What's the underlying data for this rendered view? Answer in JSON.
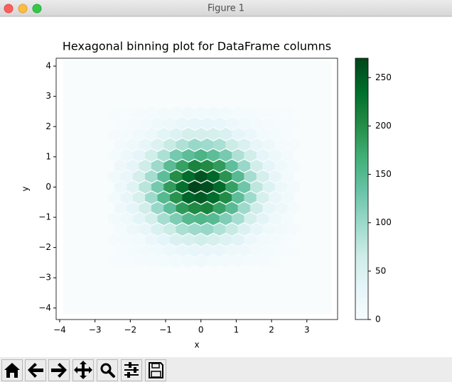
{
  "window": {
    "title": "Figure 1"
  },
  "chart_data": {
    "type": "hexbin",
    "title": "Hexagonal binning plot for DataFrame columns",
    "x_label": "x",
    "y_label": "y",
    "xlim": [
      -4.1,
      3.87
    ],
    "ylim": [
      -4.38,
      4.26
    ],
    "xticks": [
      {
        "value": -4,
        "label": "−4"
      },
      {
        "value": -3,
        "label": "−3"
      },
      {
        "value": -2,
        "label": "−2"
      },
      {
        "value": -1,
        "label": "−1"
      },
      0,
      1,
      2,
      3
    ],
    "yticks": [
      {
        "value": -4,
        "label": "−4"
      },
      {
        "value": -3,
        "label": "−3"
      },
      {
        "value": -2,
        "label": "−2"
      },
      {
        "value": -1,
        "label": "−1"
      },
      0,
      1,
      2,
      3,
      4
    ],
    "colormap": [
      "#f7fcfd",
      "#e5f5f9",
      "#ccece6",
      "#99d8c9",
      "#66c2a4",
      "#41ae76",
      "#238b45",
      "#006d2c",
      "#00441b"
    ],
    "clim": [
      0,
      270
    ],
    "cticks": [
      0,
      50,
      100,
      150,
      200,
      250
    ],
    "hex_width": 0.35,
    "rows": [
      {
        "y": -2.45,
        "x": [
          -2.45,
          -2.1,
          -1.75,
          -1.4,
          -1.05,
          -0.7,
          -0.35,
          0,
          0.35,
          0.7,
          1.05,
          1.4,
          1.75,
          2.1,
          2.45
        ],
        "counts": [
          1,
          2,
          3,
          5,
          7,
          12,
          13,
          15,
          12,
          10,
          8,
          4,
          3,
          1,
          0
        ]
      },
      {
        "y": -2.1,
        "x": [
          -2.275,
          -1.925,
          -1.575,
          -1.225,
          -0.875,
          -0.525,
          -0.175,
          0.175,
          0.525,
          0.875,
          1.225,
          1.575,
          1.925,
          2.275,
          2.625
        ],
        "counts": [
          2,
          5,
          10,
          13,
          21,
          25,
          30,
          28,
          27,
          19,
          15,
          8,
          5,
          2,
          1
        ]
      },
      {
        "y": -1.75,
        "x": [
          -2.45,
          -2.1,
          -1.75,
          -1.4,
          -1.05,
          -0.7,
          -0.35,
          0,
          0.35,
          0.7,
          1.05,
          1.4,
          1.75,
          2.1,
          2.45
        ],
        "counts": [
          3,
          7,
          12,
          23,
          33,
          48,
          54,
          60,
          53,
          45,
          36,
          21,
          12,
          6,
          2
        ]
      },
      {
        "y": -1.4,
        "x": [
          -2.275,
          -1.925,
          -1.575,
          -1.225,
          -0.875,
          -0.525,
          -0.175,
          0.175,
          0.525,
          0.875,
          1.225,
          1.575,
          1.925,
          2.275,
          2.625
        ],
        "counts": [
          7,
          17,
          28,
          50,
          67,
          90,
          98,
          103,
          86,
          71,
          46,
          30,
          15,
          9,
          3
        ]
      },
      {
        "y": -1.05,
        "x": [
          -2.45,
          -2.1,
          -1.75,
          -1.4,
          -1.05,
          -0.7,
          -0.35,
          0,
          0.35,
          0.7,
          1.05,
          1.4,
          1.75,
          2.1,
          2.45
        ],
        "counts": [
          9,
          16,
          35,
          56,
          92,
          120,
          150,
          153,
          148,
          118,
          93,
          55,
          35,
          16,
          7
        ]
      },
      {
        "y": -0.7,
        "x": [
          -2.275,
          -1.925,
          -1.575,
          -1.225,
          -0.875,
          -0.525,
          -0.175,
          0.175,
          0.525,
          0.875,
          1.225,
          1.575,
          1.925,
          2.275,
          2.625
        ],
        "counts": [
          15,
          34,
          60,
          102,
          141,
          188,
          205,
          212,
          180,
          147,
          98,
          63,
          31,
          17,
          6
        ]
      },
      {
        "y": -0.35,
        "x": [
          -2.45,
          -2.1,
          -1.75,
          -1.4,
          -1.05,
          -0.7,
          -0.35,
          0,
          0.35,
          0.7,
          1.05,
          1.4,
          1.75,
          2.1,
          2.45
        ],
        "counts": [
          12,
          29,
          53,
          97,
          150,
          196,
          243,
          251,
          236,
          203,
          143,
          97,
          53,
          27,
          14
        ]
      },
      {
        "y": 0,
        "x": [
          -2.275,
          -1.925,
          -1.575,
          -1.225,
          -0.875,
          -0.525,
          -0.175,
          0.175,
          0.525,
          0.875,
          1.225,
          1.575,
          1.925,
          2.275,
          2.625
        ],
        "counts": [
          21,
          40,
          80,
          125,
          187,
          232,
          270,
          262,
          238,
          181,
          130,
          76,
          44,
          19,
          8
        ]
      },
      {
        "y": 0.35,
        "x": [
          -2.45,
          -2.1,
          -1.75,
          -1.4,
          -1.05,
          -0.7,
          -0.35,
          0,
          0.35,
          0.7,
          1.05,
          1.4,
          1.75,
          2.1,
          2.45
        ],
        "counts": [
          14,
          27,
          57,
          93,
          144,
          201,
          236,
          257,
          241,
          195,
          149,
          92,
          56,
          29,
          12
        ]
      },
      {
        "y": 0.7,
        "x": [
          -2.275,
          -1.925,
          -1.575,
          -1.225,
          -0.875,
          -0.525,
          -0.175,
          0.175,
          0.525,
          0.875,
          1.225,
          1.575,
          1.925,
          2.275,
          2.625
        ],
        "counts": [
          17,
          32,
          63,
          98,
          146,
          181,
          211,
          204,
          187,
          141,
          102,
          59,
          34,
          15,
          7
        ]
      },
      {
        "y": 1.05,
        "x": [
          -2.45,
          -2.1,
          -1.75,
          -1.4,
          -1.05,
          -0.7,
          -0.35,
          0,
          0.35,
          0.7,
          1.05,
          1.4,
          1.75,
          2.1,
          2.45
        ],
        "counts": [
          7,
          18,
          33,
          60,
          88,
          125,
          143,
          158,
          144,
          124,
          87,
          60,
          32,
          18,
          9
        ]
      },
      {
        "y": 1.4,
        "x": [
          -2.275,
          -1.925,
          -1.575,
          -1.225,
          -0.875,
          -0.525,
          -0.175,
          0.175,
          0.525,
          0.875,
          1.225,
          1.575,
          1.925,
          2.275,
          2.625
        ],
        "counts": [
          8,
          15,
          30,
          46,
          70,
          86,
          102,
          97,
          90,
          67,
          50,
          28,
          17,
          7,
          4
        ]
      },
      {
        "y": 1.75,
        "x": [
          -2.45,
          -2.1,
          -1.75,
          -1.4,
          -1.05,
          -0.7,
          -0.35,
          0,
          0.35,
          0.7,
          1.05,
          1.4,
          1.75,
          2.1,
          2.45
        ],
        "counts": [
          3,
          6,
          14,
          21,
          35,
          44,
          57,
          56,
          54,
          48,
          32,
          23,
          12,
          7,
          2
        ]
      },
      {
        "y": 2.1,
        "x": [
          -2.275,
          -1.925,
          -1.575,
          -1.225,
          -0.875,
          -0.525,
          -0.175,
          0.175,
          0.525,
          0.875,
          1.225,
          1.575,
          1.925,
          2.275,
          2.625
        ],
        "counts": [
          2,
          4,
          9,
          15,
          19,
          27,
          28,
          30,
          25,
          21,
          13,
          10,
          4,
          2,
          1
        ]
      },
      {
        "y": 2.45,
        "x": [
          -2.45,
          -2.1,
          -1.75,
          -1.4,
          -1.05,
          -0.7,
          -0.35,
          0,
          0.35,
          0.7,
          1.05,
          1.4,
          1.75,
          2.1,
          2.45
        ],
        "counts": [
          1,
          1,
          3,
          6,
          8,
          10,
          14,
          13,
          14,
          11,
          7,
          5,
          2,
          1,
          1
        ]
      }
    ]
  }
}
